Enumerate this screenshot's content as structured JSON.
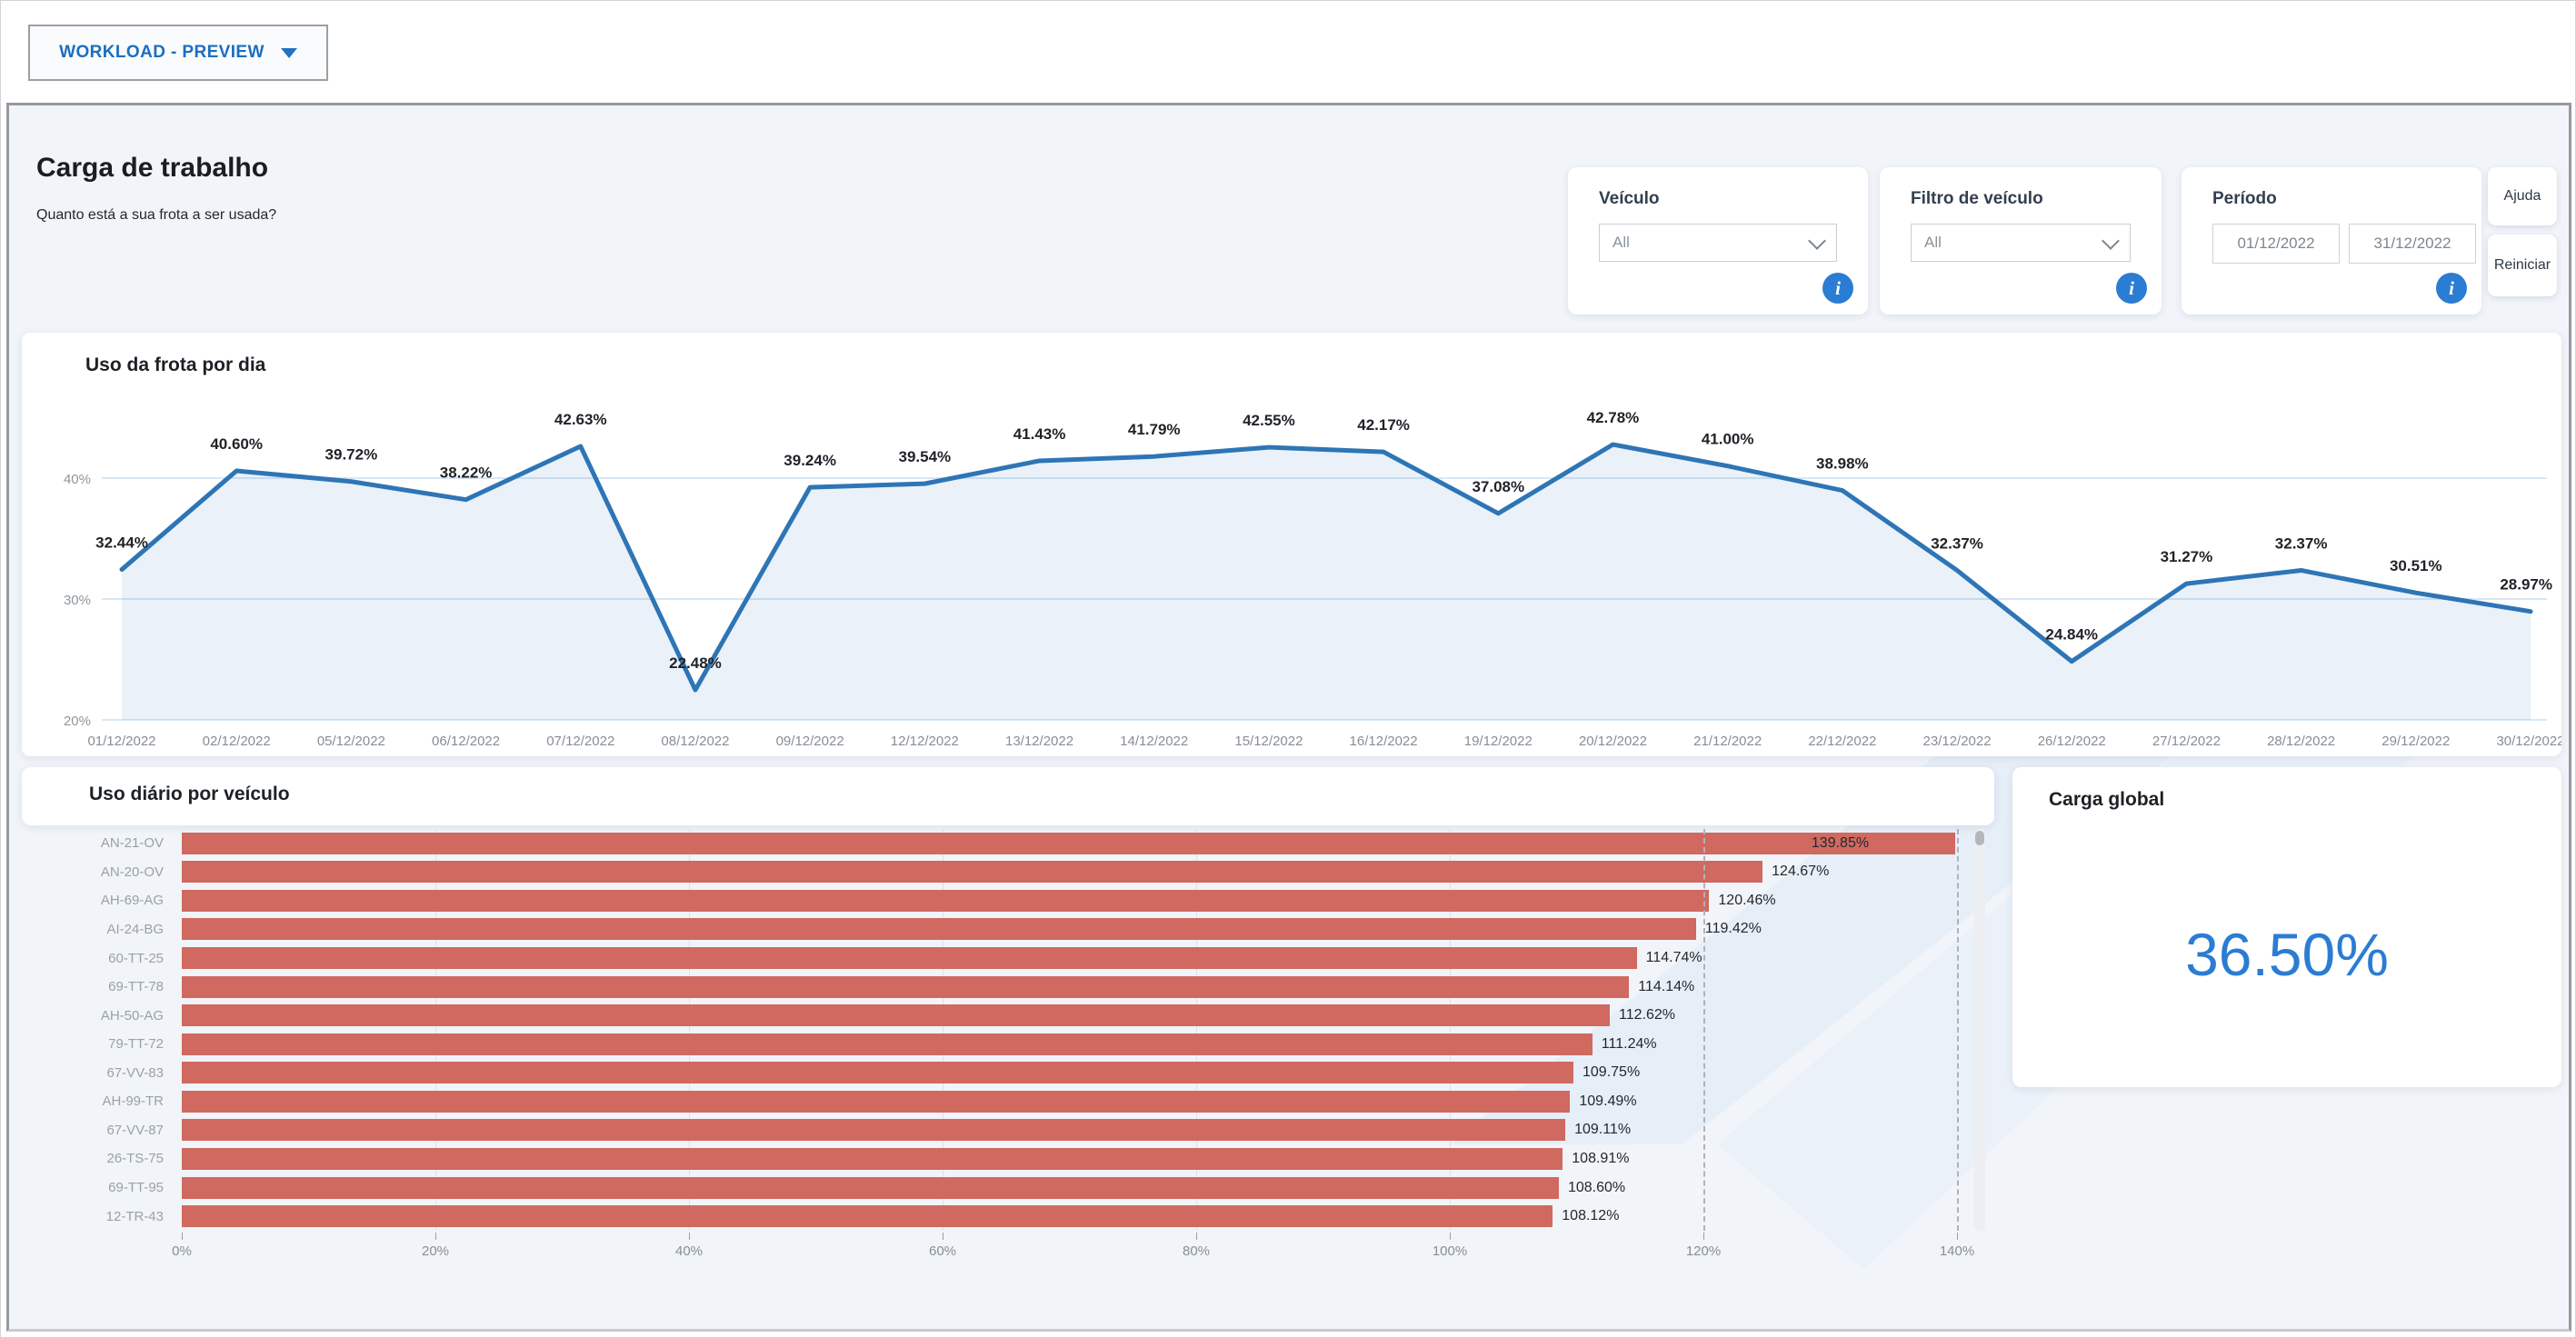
{
  "toolbar": {
    "report_selector": "WORKLOAD - PREVIEW"
  },
  "header": {
    "title": "Carga de trabalho",
    "subtitle": "Quanto está a sua frota a ser usada?"
  },
  "filters": {
    "vehicle_label": "Veículo",
    "vehicle_value": "All",
    "vehicle_filter_label": "Filtro de veículo",
    "vehicle_filter_value": "All",
    "period_label": "Período",
    "period_start": "01/12/2022",
    "period_end": "31/12/2022",
    "help_button": "Ajuda",
    "reset_button": "Reiniciar",
    "info_icon_glyph": "i"
  },
  "colors": {
    "line_blue": "#2E75B6",
    "area_fill": "rgba(46,117,182,0.10)",
    "bar_red": "#d0695f",
    "kpi_blue": "#2b7cd3",
    "grid_blue": "#d9e7f3"
  },
  "chart_data": [
    {
      "type": "line",
      "title": "Uso da frota por dia",
      "x": [
        "01/12/2022",
        "02/12/2022",
        "05/12/2022",
        "06/12/2022",
        "07/12/2022",
        "08/12/2022",
        "09/12/2022",
        "12/12/2022",
        "13/12/2022",
        "14/12/2022",
        "15/12/2022",
        "16/12/2022",
        "19/12/2022",
        "20/12/2022",
        "21/12/2022",
        "22/12/2022",
        "23/12/2022",
        "26/12/2022",
        "27/12/2022",
        "28/12/2022",
        "29/12/2022",
        "30/12/2022"
      ],
      "values": [
        32.44,
        40.6,
        39.72,
        38.22,
        42.63,
        22.48,
        39.24,
        39.54,
        41.43,
        41.79,
        42.55,
        42.17,
        37.08,
        42.78,
        41.0,
        38.98,
        32.37,
        24.84,
        31.27,
        32.37,
        30.51,
        28.97
      ],
      "yticks": [
        40,
        30,
        20
      ],
      "ylim": [
        20,
        45
      ],
      "grid": true,
      "legend": "none",
      "label_format": "percent_2dp"
    },
    {
      "type": "bar",
      "orientation": "horizontal",
      "title": "Uso diário por veículo",
      "categories": [
        "AN-21-OV",
        "AN-20-OV",
        "AH-69-AG",
        "AI-24-BG",
        "60-TT-25",
        "69-TT-78",
        "AH-50-AG",
        "79-TT-72",
        "67-VV-83",
        "AH-99-TR",
        "67-VV-87",
        "26-TS-75",
        "69-TT-95",
        "12-TR-43"
      ],
      "values": [
        139.85,
        124.67,
        120.46,
        119.42,
        114.74,
        114.14,
        112.62,
        111.24,
        109.75,
        109.49,
        109.11,
        108.91,
        108.6,
        108.12
      ],
      "xticks": [
        0,
        20,
        40,
        60,
        80,
        100,
        120,
        140
      ],
      "xlim": [
        0,
        140
      ],
      "solid_gridlines": [
        20,
        40,
        60,
        80,
        100
      ],
      "dashed_gridlines": [
        120,
        140
      ],
      "label_format": "percent_2dp"
    },
    {
      "type": "kpi",
      "title": "Carga global",
      "value": "36.50%"
    }
  ]
}
